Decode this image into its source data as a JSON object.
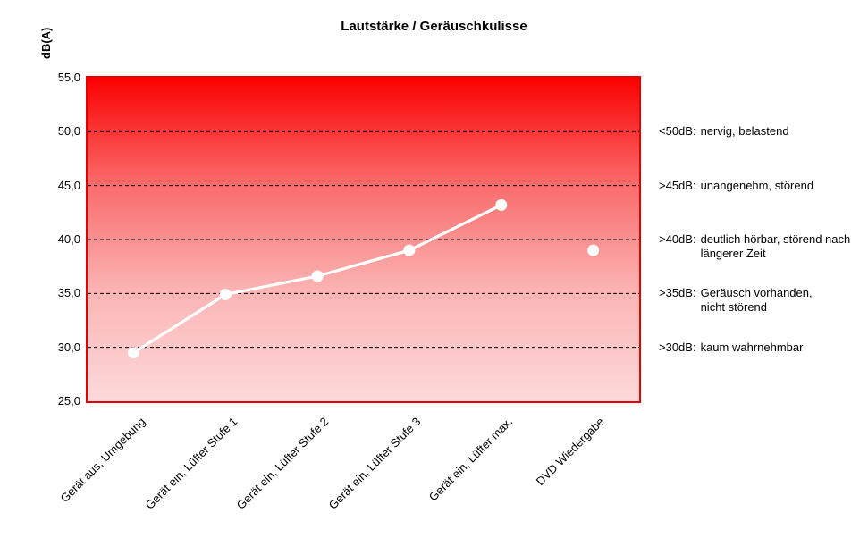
{
  "colors": {
    "plot_border": "#e60000",
    "gradient_top": "#fb0000",
    "gradient_bottom": "#fdd9d9",
    "gridline": "#000000",
    "series_line": "#ffffff",
    "marker_fill": "#ffffff",
    "text": "#000000",
    "background": "#ffffff"
  },
  "chart_data": {
    "type": "line",
    "title": "Lautstärke / Geräuschkulisse",
    "ylabel": "dB(A)",
    "xlabel": "",
    "ylim": [
      25,
      55
    ],
    "ytick_values": [
      55,
      50,
      45,
      40,
      35,
      30,
      25
    ],
    "ytick_labels": [
      "55,0",
      "50,0",
      "45,0",
      "40,0",
      "35,0",
      "30,0",
      "25,0"
    ],
    "gridlines_at": [
      50,
      45,
      40,
      35,
      30
    ],
    "grid": "dashed horizontal",
    "legend": "none",
    "categories": [
      "Gerät aus, Umgebung",
      "Gerät ein, Lüfter Stufe 1",
      "Gerät ein, Lüfter Stufe 2",
      "Gerät ein, Lüfter Stufe 3",
      "Gerät ein, Lüfter max.",
      "DVD Wiedergabe"
    ],
    "values": [
      29.5,
      34.9,
      36.6,
      39.0,
      43.2,
      39.0
    ],
    "line_connected_indices": [
      0,
      1,
      2,
      3,
      4
    ],
    "isolated_point_indices": [
      5
    ],
    "annotations": [
      {
        "at_db": 50,
        "label": "<50dB:",
        "lines": [
          "nervig, belastend"
        ]
      },
      {
        "at_db": 45,
        "label": ">45dB:",
        "lines": [
          "unangenehm, störend"
        ]
      },
      {
        "at_db": 40,
        "label": ">40dB:",
        "lines": [
          "deutlich hörbar, störend nach",
          "längerer Zeit"
        ]
      },
      {
        "at_db": 35,
        "label": ">35dB:",
        "lines": [
          "Geräusch vorhanden,",
          "nicht störend"
        ]
      },
      {
        "at_db": 30,
        "label": ">30dB:",
        "lines": [
          "kaum wahrnehmbar"
        ]
      }
    ]
  }
}
